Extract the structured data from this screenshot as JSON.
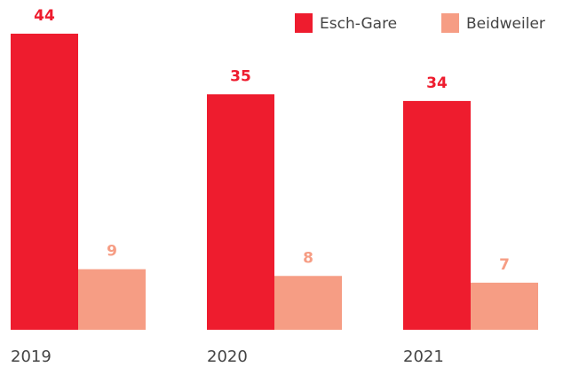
{
  "chart_data": {
    "type": "bar",
    "categories": [
      "2019",
      "2020",
      "2021"
    ],
    "series": [
      {
        "name": "Esch-Gare",
        "color": "#ee1c2e",
        "values": [
          44,
          35,
          34
        ]
      },
      {
        "name": "Beidweiler",
        "color": "#f69d84",
        "values": [
          9,
          8,
          7
        ]
      }
    ],
    "ylim": [
      0,
      44
    ],
    "legend": "top-right"
  }
}
